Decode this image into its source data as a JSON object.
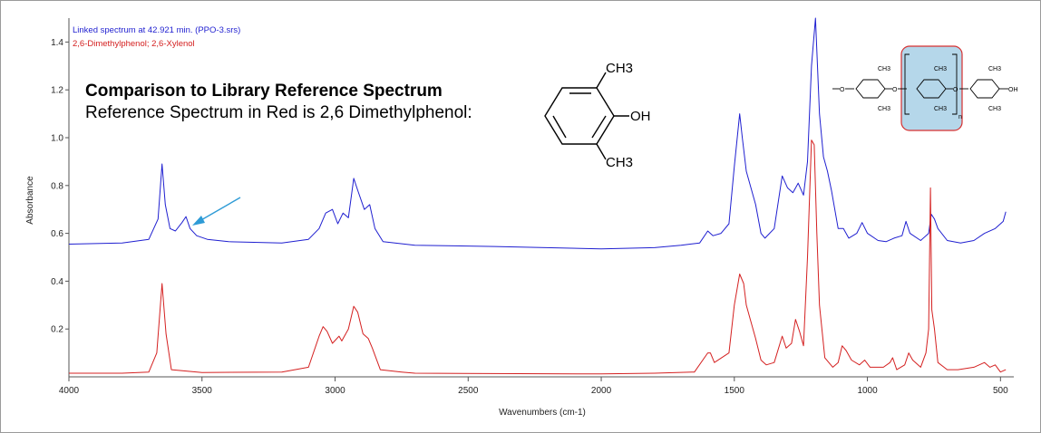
{
  "annotation": {
    "title": "Comparison to Library Reference Spectrum",
    "subtitle": "Reference Spectrum in Red is 2,6 Dimethylphenol:"
  },
  "molecule_small": {
    "methyl_top": "CH3",
    "hydroxyl": "OH",
    "methyl_bottom": "CH3"
  },
  "molecule_polymer": {
    "methoxy": "O",
    "ether_1": "O",
    "ether_2": "O",
    "hydroxyl": "OH",
    "methyl": "CH3",
    "repeat": "n"
  },
  "chart_data": {
    "type": "line",
    "xlabel": "Wavenumbers (cm-1)",
    "ylabel": "Absorbance",
    "xlim": [
      4000,
      450
    ],
    "ylim": [
      0,
      1.5
    ],
    "x_ticks": [
      4000,
      3500,
      3000,
      2500,
      2000,
      1500,
      1000,
      500
    ],
    "y_ticks": [
      0.2,
      0.4,
      0.6,
      0.8,
      1.0,
      1.2,
      1.4
    ],
    "y_tick_labels": [
      "0.2",
      "0.4",
      "0.6",
      "0.8",
      "1.0",
      "1.2",
      "1.4"
    ],
    "grid": false,
    "legend_position": "top-left",
    "series": [
      {
        "name": "Linked spectrum at 42.921 min. (PPO-3.srs)",
        "color": "#1f1fd0",
        "points": [
          [
            4000,
            0.555
          ],
          [
            3800,
            0.56
          ],
          [
            3700,
            0.575
          ],
          [
            3665,
            0.66
          ],
          [
            3650,
            0.89
          ],
          [
            3638,
            0.72
          ],
          [
            3620,
            0.62
          ],
          [
            3600,
            0.61
          ],
          [
            3575,
            0.645
          ],
          [
            3560,
            0.67
          ],
          [
            3545,
            0.62
          ],
          [
            3520,
            0.59
          ],
          [
            3480,
            0.575
          ],
          [
            3400,
            0.565
          ],
          [
            3200,
            0.56
          ],
          [
            3100,
            0.575
          ],
          [
            3060,
            0.62
          ],
          [
            3035,
            0.685
          ],
          [
            3010,
            0.7
          ],
          [
            2990,
            0.64
          ],
          [
            2970,
            0.685
          ],
          [
            2950,
            0.665
          ],
          [
            2930,
            0.83
          ],
          [
            2915,
            0.78
          ],
          [
            2890,
            0.7
          ],
          [
            2870,
            0.72
          ],
          [
            2850,
            0.62
          ],
          [
            2820,
            0.565
          ],
          [
            2700,
            0.55
          ],
          [
            2400,
            0.545
          ],
          [
            2000,
            0.535
          ],
          [
            1800,
            0.54
          ],
          [
            1700,
            0.55
          ],
          [
            1630,
            0.56
          ],
          [
            1600,
            0.61
          ],
          [
            1580,
            0.59
          ],
          [
            1550,
            0.6
          ],
          [
            1520,
            0.64
          ],
          [
            1500,
            0.88
          ],
          [
            1480,
            1.1
          ],
          [
            1470,
            1.0
          ],
          [
            1455,
            0.86
          ],
          [
            1440,
            0.8
          ],
          [
            1420,
            0.72
          ],
          [
            1400,
            0.6
          ],
          [
            1385,
            0.58
          ],
          [
            1350,
            0.62
          ],
          [
            1320,
            0.84
          ],
          [
            1300,
            0.79
          ],
          [
            1280,
            0.77
          ],
          [
            1260,
            0.81
          ],
          [
            1240,
            0.76
          ],
          [
            1225,
            0.9
          ],
          [
            1210,
            1.3
          ],
          [
            1195,
            1.5
          ],
          [
            1180,
            1.1
          ],
          [
            1165,
            0.92
          ],
          [
            1150,
            0.86
          ],
          [
            1135,
            0.78
          ],
          [
            1110,
            0.62
          ],
          [
            1090,
            0.62
          ],
          [
            1070,
            0.58
          ],
          [
            1040,
            0.6
          ],
          [
            1020,
            0.645
          ],
          [
            1000,
            0.6
          ],
          [
            960,
            0.57
          ],
          [
            930,
            0.565
          ],
          [
            900,
            0.58
          ],
          [
            870,
            0.59
          ],
          [
            855,
            0.65
          ],
          [
            840,
            0.6
          ],
          [
            800,
            0.57
          ],
          [
            770,
            0.6
          ],
          [
            760,
            0.68
          ],
          [
            748,
            0.66
          ],
          [
            735,
            0.62
          ],
          [
            700,
            0.57
          ],
          [
            650,
            0.56
          ],
          [
            600,
            0.57
          ],
          [
            560,
            0.6
          ],
          [
            520,
            0.62
          ],
          [
            490,
            0.65
          ],
          [
            480,
            0.69
          ]
        ]
      },
      {
        "name": "2,6-Dimethylphenol; 2,6-Xylenol",
        "color": "#d42020",
        "points": [
          [
            4000,
            0.015
          ],
          [
            3800,
            0.015
          ],
          [
            3700,
            0.02
          ],
          [
            3670,
            0.1
          ],
          [
            3650,
            0.39
          ],
          [
            3635,
            0.18
          ],
          [
            3615,
            0.03
          ],
          [
            3500,
            0.018
          ],
          [
            3200,
            0.02
          ],
          [
            3100,
            0.04
          ],
          [
            3060,
            0.17
          ],
          [
            3045,
            0.21
          ],
          [
            3030,
            0.19
          ],
          [
            3010,
            0.14
          ],
          [
            2985,
            0.17
          ],
          [
            2975,
            0.15
          ],
          [
            2950,
            0.2
          ],
          [
            2930,
            0.295
          ],
          [
            2915,
            0.27
          ],
          [
            2895,
            0.18
          ],
          [
            2875,
            0.16
          ],
          [
            2860,
            0.12
          ],
          [
            2830,
            0.03
          ],
          [
            2750,
            0.02
          ],
          [
            2700,
            0.015
          ],
          [
            2000,
            0.012
          ],
          [
            1800,
            0.015
          ],
          [
            1650,
            0.02
          ],
          [
            1600,
            0.1
          ],
          [
            1590,
            0.1
          ],
          [
            1575,
            0.06
          ],
          [
            1520,
            0.1
          ],
          [
            1500,
            0.3
          ],
          [
            1480,
            0.43
          ],
          [
            1465,
            0.39
          ],
          [
            1455,
            0.3
          ],
          [
            1440,
            0.24
          ],
          [
            1420,
            0.16
          ],
          [
            1400,
            0.07
          ],
          [
            1380,
            0.05
          ],
          [
            1350,
            0.06
          ],
          [
            1320,
            0.17
          ],
          [
            1305,
            0.12
          ],
          [
            1285,
            0.14
          ],
          [
            1270,
            0.24
          ],
          [
            1255,
            0.19
          ],
          [
            1240,
            0.13
          ],
          [
            1225,
            0.5
          ],
          [
            1210,
            0.99
          ],
          [
            1200,
            0.97
          ],
          [
            1190,
            0.6
          ],
          [
            1180,
            0.3
          ],
          [
            1160,
            0.08
          ],
          [
            1130,
            0.04
          ],
          [
            1110,
            0.06
          ],
          [
            1095,
            0.13
          ],
          [
            1080,
            0.11
          ],
          [
            1060,
            0.07
          ],
          [
            1030,
            0.05
          ],
          [
            1010,
            0.07
          ],
          [
            990,
            0.04
          ],
          [
            940,
            0.04
          ],
          [
            915,
            0.06
          ],
          [
            905,
            0.08
          ],
          [
            890,
            0.03
          ],
          [
            860,
            0.05
          ],
          [
            845,
            0.1
          ],
          [
            830,
            0.07
          ],
          [
            800,
            0.04
          ],
          [
            780,
            0.1
          ],
          [
            770,
            0.2
          ],
          [
            763,
            0.79
          ],
          [
            758,
            0.28
          ],
          [
            748,
            0.2
          ],
          [
            735,
            0.06
          ],
          [
            700,
            0.03
          ],
          [
            660,
            0.03
          ],
          [
            600,
            0.04
          ],
          [
            560,
            0.06
          ],
          [
            540,
            0.04
          ],
          [
            520,
            0.05
          ],
          [
            500,
            0.02
          ],
          [
            480,
            0.03
          ]
        ]
      }
    ]
  }
}
